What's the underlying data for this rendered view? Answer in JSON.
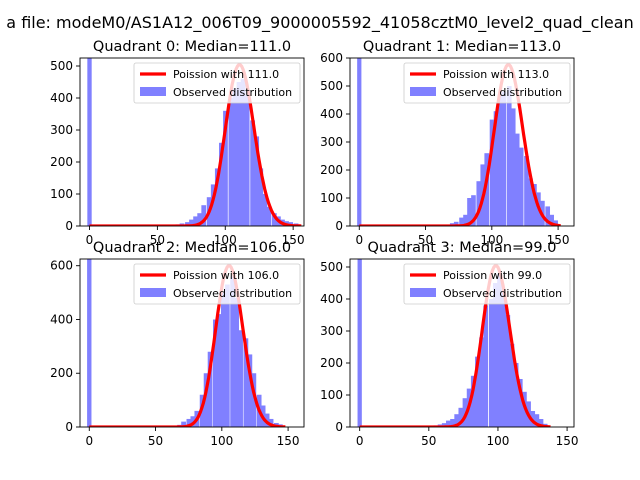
{
  "figure": {
    "suptitle": "a file: modeM0/AS1A12_006T09_9000005592_41058cztM0_level2_quad_clean"
  },
  "colors": {
    "hist": "#8080ff",
    "poisson": "#ff0000",
    "axis": "#000000"
  },
  "chart_data": [
    {
      "type": "bar",
      "title": "Quadrant 0: Median=111.0",
      "median": 111.0,
      "xlim": [
        -7,
        158
      ],
      "ylim": [
        0,
        525
      ],
      "xticks": [
        0,
        50,
        100,
        150
      ],
      "yticks": [
        0,
        100,
        200,
        300,
        400,
        500
      ],
      "bin_width": 3.2,
      "zero_bin": {
        "x": 0,
        "height": 525
      },
      "hist_x": [
        62,
        65,
        68,
        72,
        75,
        78,
        81,
        84,
        88,
        91,
        94,
        97,
        100,
        104,
        107,
        110,
        113,
        116,
        120,
        123,
        126,
        129,
        132,
        136,
        139,
        142,
        145,
        148,
        152
      ],
      "hist_y": [
        3,
        5,
        8,
        12,
        20,
        30,
        40,
        65,
        90,
        130,
        180,
        260,
        360,
        400,
        430,
        450,
        460,
        410,
        330,
        280,
        180,
        100,
        60,
        40,
        30,
        20,
        15,
        12,
        8
      ],
      "poisson_label": "Poission with 111.0",
      "hist_label": "Observed distribution"
    },
    {
      "type": "bar",
      "title": "Quadrant 1: Median=113.0",
      "median": 113.0,
      "xlim": [
        -7,
        162
      ],
      "ylim": [
        0,
        600
      ],
      "xticks": [
        0,
        50,
        100,
        150
      ],
      "yticks": [
        0,
        100,
        200,
        300,
        400,
        500,
        600
      ],
      "bin_width": 3.2,
      "zero_bin": {
        "x": 0,
        "height": 600
      },
      "hist_x": [
        70,
        73,
        77,
        80,
        83,
        86,
        90,
        93,
        96,
        100,
        103,
        106,
        109,
        113,
        116,
        119,
        122,
        126,
        129,
        132,
        135,
        138,
        142,
        145,
        148
      ],
      "hist_y": [
        10,
        15,
        30,
        40,
        100,
        110,
        160,
        220,
        260,
        380,
        410,
        470,
        480,
        500,
        420,
        330,
        280,
        250,
        170,
        150,
        120,
        90,
        70,
        40,
        20
      ],
      "poisson_label": "Poission with 113.0",
      "hist_label": "Observed distribution"
    },
    {
      "type": "bar",
      "title": "Quadrant 2: Median=106.0",
      "median": 106.0,
      "xlim": [
        -7,
        162
      ],
      "ylim": [
        0,
        625
      ],
      "xticks": [
        0,
        50,
        100,
        150
      ],
      "yticks": [
        0,
        200,
        400,
        600
      ],
      "bin_width": 3.3,
      "zero_bin": {
        "x": 0,
        "height": 625
      },
      "hist_x": [
        65,
        68,
        71,
        75,
        78,
        81,
        85,
        88,
        91,
        95,
        98,
        101,
        104,
        108,
        111,
        114,
        118,
        121,
        124,
        128,
        131,
        134,
        137,
        141,
        144
      ],
      "hist_y": [
        5,
        8,
        20,
        30,
        40,
        60,
        120,
        200,
        280,
        400,
        420,
        500,
        530,
        560,
        480,
        360,
        330,
        270,
        200,
        120,
        80,
        50,
        30,
        15,
        10
      ],
      "poisson_label": "Poission with 106.0",
      "hist_label": "Observed distribution"
    },
    {
      "type": "bar",
      "title": "Quadrant 3: Median=99.0",
      "median": 99.0,
      "xlim": [
        -7,
        155
      ],
      "ylim": [
        0,
        525
      ],
      "xticks": [
        0,
        50,
        100,
        150
      ],
      "yticks": [
        0,
        100,
        200,
        300,
        400,
        500
      ],
      "bin_width": 3.1,
      "zero_bin": {
        "x": 0,
        "height": 525
      },
      "hist_x": [
        55,
        58,
        61,
        64,
        67,
        70,
        73,
        76,
        79,
        82,
        85,
        88,
        91,
        95,
        98,
        101,
        104,
        107,
        110,
        113,
        116,
        119,
        122,
        125,
        128,
        131,
        134
      ],
      "hist_y": [
        5,
        8,
        12,
        20,
        25,
        40,
        60,
        90,
        120,
        160,
        220,
        280,
        380,
        400,
        450,
        480,
        420,
        350,
        260,
        200,
        150,
        110,
        80,
        50,
        40,
        25,
        10
      ],
      "poisson_label": "Poission with 99.0",
      "hist_label": "Observed distribution"
    }
  ]
}
